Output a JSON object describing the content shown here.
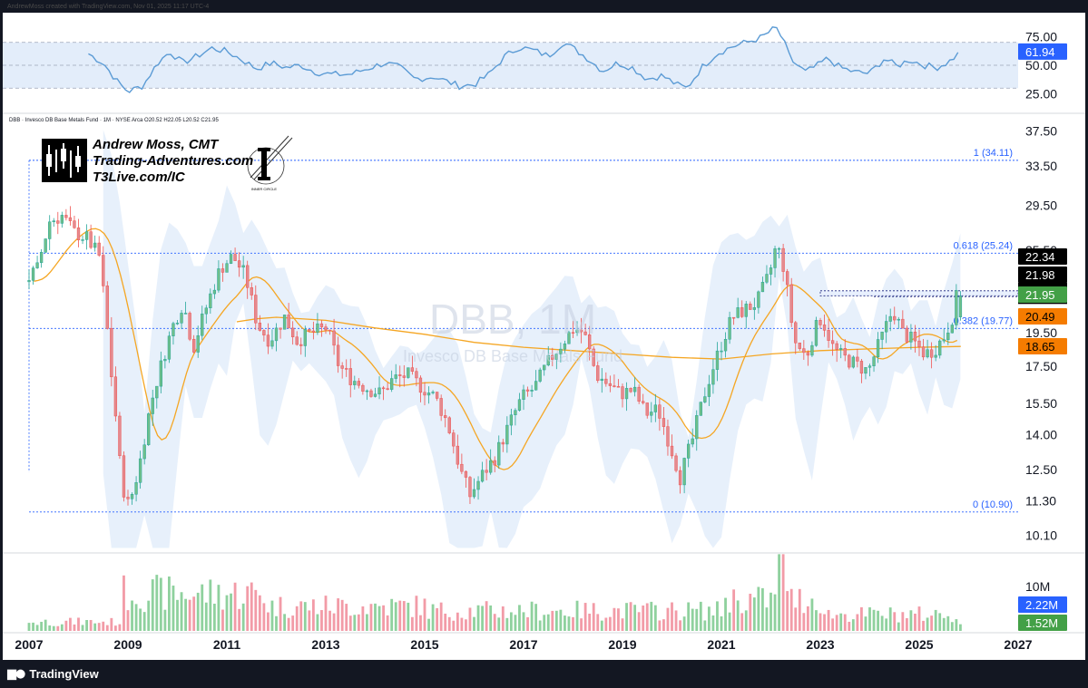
{
  "header": {
    "creator_line": "AndrewMoss created with TradingView.com, Nov 01, 2025 11:17 UTC-4"
  },
  "branding": {
    "tradingview_label": "TradingView",
    "author_lines": [
      "Andrew Moss, CMT",
      "Trading-Adventures.com",
      "T3Live.com/IC"
    ],
    "inner_circle_label": "INNER CIRCLE"
  },
  "legend": {
    "text": "DBB · Invesco DB Base Metals Fund · 1M · NYSE Arca   O20.52  H22.05  L20.52  C21.95"
  },
  "watermark": {
    "symbol": "DBB, 1M",
    "name": "Invesco DB Base Metals Fund"
  },
  "colors": {
    "up": "#26a69a",
    "up_body": "#6fbf8a",
    "down": "#ef5350",
    "down_body": "#e48a8f",
    "vol_up": "#8fd19e",
    "vol_down": "#f29ba7",
    "ma": "#f5a623",
    "rsi": "#5b9bd5",
    "bb": "#e3edfa",
    "fib": "#2962ff",
    "tag_black": "#000000",
    "tag_green": "#43a047",
    "tag_orange": "#f57c00",
    "tag_blue": "#2962ff"
  },
  "chart_data": {
    "type": "candlestick",
    "interval": "1M",
    "x_range": [
      2007.0,
      2027.0
    ],
    "y_scale": "log",
    "y_range": [
      9.6,
      39.5
    ],
    "price_ticks": [
      "37.50",
      "33.50",
      "29.50",
      "25.50",
      "21.98",
      "19.50",
      "17.50",
      "15.50",
      "14.00",
      "12.50",
      "11.30",
      "10.10"
    ],
    "rsi_ticks": [
      "75.00",
      "50.00",
      "25.00"
    ],
    "volume_ticks": [
      "10M"
    ],
    "x_ticks": [
      "2007",
      "2009",
      "2011",
      "2013",
      "2015",
      "2017",
      "2019",
      "2021",
      "2023",
      "2025",
      "2027"
    ],
    "price_anchors": [
      [
        2007.0,
        23.0
      ],
      [
        2007.25,
        24.0
      ],
      [
        2007.5,
        28.0
      ],
      [
        2007.75,
        28.5
      ],
      [
        2008.0,
        27.0
      ],
      [
        2008.25,
        26.5
      ],
      [
        2008.5,
        25.0
      ],
      [
        2008.75,
        17.0
      ],
      [
        2008.95,
        12.0
      ],
      [
        2009.1,
        11.1
      ],
      [
        2009.3,
        12.5
      ],
      [
        2009.55,
        15.5
      ],
      [
        2009.8,
        18.0
      ],
      [
        2010.0,
        20.0
      ],
      [
        2010.2,
        21.5
      ],
      [
        2010.4,
        18.5
      ],
      [
        2010.65,
        21.0
      ],
      [
        2010.95,
        24.0
      ],
      [
        2011.2,
        25.0
      ],
      [
        2011.45,
        23.5
      ],
      [
        2011.7,
        20.0
      ],
      [
        2011.95,
        19.0
      ],
      [
        2012.25,
        20.5
      ],
      [
        2012.5,
        19.0
      ],
      [
        2012.8,
        19.5
      ],
      [
        2013.1,
        19.8
      ],
      [
        2013.35,
        17.5
      ],
      [
        2013.6,
        16.8
      ],
      [
        2013.9,
        16.3
      ],
      [
        2014.2,
        16.0
      ],
      [
        2014.45,
        16.8
      ],
      [
        2014.75,
        17.0
      ],
      [
        2015.0,
        16.4
      ],
      [
        2015.3,
        15.8
      ],
      [
        2015.55,
        14.5
      ],
      [
        2015.8,
        12.5
      ],
      [
        2016.0,
        11.5
      ],
      [
        2016.25,
        12.3
      ],
      [
        2016.5,
        13.0
      ],
      [
        2016.8,
        14.5
      ],
      [
        2017.05,
        15.8
      ],
      [
        2017.3,
        16.3
      ],
      [
        2017.6,
        17.8
      ],
      [
        2017.9,
        19.0
      ],
      [
        2018.1,
        19.8
      ],
      [
        2018.3,
        19.5
      ],
      [
        2018.55,
        17.0
      ],
      [
        2018.8,
        16.5
      ],
      [
        2019.05,
        16.0
      ],
      [
        2019.3,
        16.2
      ],
      [
        2019.55,
        15.0
      ],
      [
        2019.8,
        15.2
      ],
      [
        2020.05,
        13.5
      ],
      [
        2020.25,
        12.2
      ],
      [
        2020.5,
        13.8
      ],
      [
        2020.8,
        16.5
      ],
      [
        2021.05,
        18.5
      ],
      [
        2021.3,
        20.5
      ],
      [
        2021.55,
        21.0
      ],
      [
        2021.8,
        21.5
      ],
      [
        2022.05,
        23.5
      ],
      [
        2022.2,
        26.0
      ],
      [
        2022.35,
        24.0
      ],
      [
        2022.55,
        19.0
      ],
      [
        2022.8,
        18.0
      ],
      [
        2022.95,
        19.5
      ],
      [
        2023.1,
        20.5
      ],
      [
        2023.35,
        18.5
      ],
      [
        2023.55,
        18.0
      ],
      [
        2023.8,
        17.6
      ],
      [
        2024.05,
        17.2
      ],
      [
        2024.3,
        19.0
      ],
      [
        2024.55,
        21.0
      ],
      [
        2024.75,
        19.5
      ],
      [
        2024.95,
        19.0
      ],
      [
        2025.2,
        18.2
      ],
      [
        2025.4,
        18.5
      ],
      [
        2025.6,
        19.3
      ],
      [
        2025.75,
        20.5
      ],
      [
        2025.84,
        21.95
      ]
    ],
    "ma_long_anchors": [
      [
        2011.2,
        20.2
      ],
      [
        2011.6,
        20.4
      ],
      [
        2012.0,
        20.5
      ],
      [
        2013.0,
        20.3
      ],
      [
        2014.0,
        19.8
      ],
      [
        2015.0,
        19.4
      ],
      [
        2016.0,
        18.9
      ],
      [
        2017.0,
        18.6
      ],
      [
        2018.0,
        18.4
      ],
      [
        2019.0,
        18.2
      ],
      [
        2020.0,
        18.0
      ],
      [
        2021.0,
        17.9
      ],
      [
        2022.0,
        18.2
      ],
      [
        2023.0,
        18.4
      ],
      [
        2024.0,
        18.5
      ],
      [
        2025.0,
        18.6
      ],
      [
        2025.84,
        18.65
      ]
    ],
    "rsi_anchors": [
      [
        2008.2,
        60
      ],
      [
        2008.5,
        52
      ],
      [
        2008.8,
        35
      ],
      [
        2009.0,
        27
      ],
      [
        2009.3,
        32
      ],
      [
        2009.6,
        52
      ],
      [
        2009.85,
        62
      ],
      [
        2010.1,
        52
      ],
      [
        2010.4,
        58
      ],
      [
        2010.7,
        65
      ],
      [
        2011.0,
        62
      ],
      [
        2011.3,
        55
      ],
      [
        2011.6,
        47
      ],
      [
        2011.9,
        52
      ],
      [
        2012.2,
        48
      ],
      [
        2012.5,
        50
      ],
      [
        2012.8,
        44
      ],
      [
        2013.1,
        42
      ],
      [
        2013.5,
        42
      ],
      [
        2013.9,
        48
      ],
      [
        2014.2,
        52
      ],
      [
        2014.5,
        48
      ],
      [
        2014.8,
        38
      ],
      [
        2015.2,
        40
      ],
      [
        2015.5,
        35
      ],
      [
        2015.7,
        32
      ],
      [
        2016.0,
        33
      ],
      [
        2016.3,
        42
      ],
      [
        2016.6,
        57
      ],
      [
        2016.9,
        66
      ],
      [
        2017.2,
        63
      ],
      [
        2017.5,
        58
      ],
      [
        2017.8,
        70
      ],
      [
        2018.0,
        65
      ],
      [
        2018.3,
        56
      ],
      [
        2018.6,
        45
      ],
      [
        2018.9,
        52
      ],
      [
        2019.2,
        48
      ],
      [
        2019.5,
        38
      ],
      [
        2019.8,
        41
      ],
      [
        2020.1,
        33
      ],
      [
        2020.3,
        30
      ],
      [
        2020.6,
        48
      ],
      [
        2020.9,
        60
      ],
      [
        2021.2,
        66
      ],
      [
        2021.5,
        70
      ],
      [
        2021.8,
        74
      ],
      [
        2022.1,
        83
      ],
      [
        2022.25,
        72
      ],
      [
        2022.4,
        55
      ],
      [
        2022.7,
        44
      ],
      [
        2022.95,
        50
      ],
      [
        2023.15,
        56
      ],
      [
        2023.4,
        48
      ],
      [
        2023.7,
        44
      ],
      [
        2024.0,
        43
      ],
      [
        2024.3,
        56
      ],
      [
        2024.55,
        49
      ],
      [
        2024.8,
        55
      ],
      [
        2025.1,
        50
      ],
      [
        2025.35,
        48
      ],
      [
        2025.6,
        53
      ],
      [
        2025.84,
        61.94
      ]
    ],
    "rsi_value": "61.94",
    "fibonacci": [
      {
        "label": "1 (34.11)",
        "price": 34.11
      },
      {
        "label": "0.618 (25.24)",
        "price": 25.24
      },
      {
        "label": "0.382 (19.77)",
        "price": 19.77
      },
      {
        "label": "0 (10.90)",
        "price": 10.9
      }
    ],
    "resistance_box": {
      "from_x": 2023.0,
      "to_x": 2025.84,
      "top": 22.34,
      "bottom": 21.98
    },
    "last_bar": {
      "open": "20.52",
      "high": "22.05",
      "low": "20.52",
      "close": "21.95"
    },
    "price_tags": [
      {
        "text": "22.34",
        "price": 22.34,
        "kind": "black"
      },
      {
        "text": "21.98",
        "price": 21.98,
        "kind": "black"
      },
      {
        "text": "21.95",
        "price": 21.95,
        "kind": "green"
      },
      {
        "text": "20.49",
        "price": 20.49,
        "kind": "orange"
      },
      {
        "text": "18.65",
        "price": 18.65,
        "kind": "orange"
      }
    ],
    "volume_tags": [
      {
        "text": "2.22M",
        "kind": "blue"
      },
      {
        "text": "1.52M",
        "kind": "green"
      }
    ],
    "rsi_tag": {
      "text": "61.94",
      "kind": "blue"
    }
  }
}
